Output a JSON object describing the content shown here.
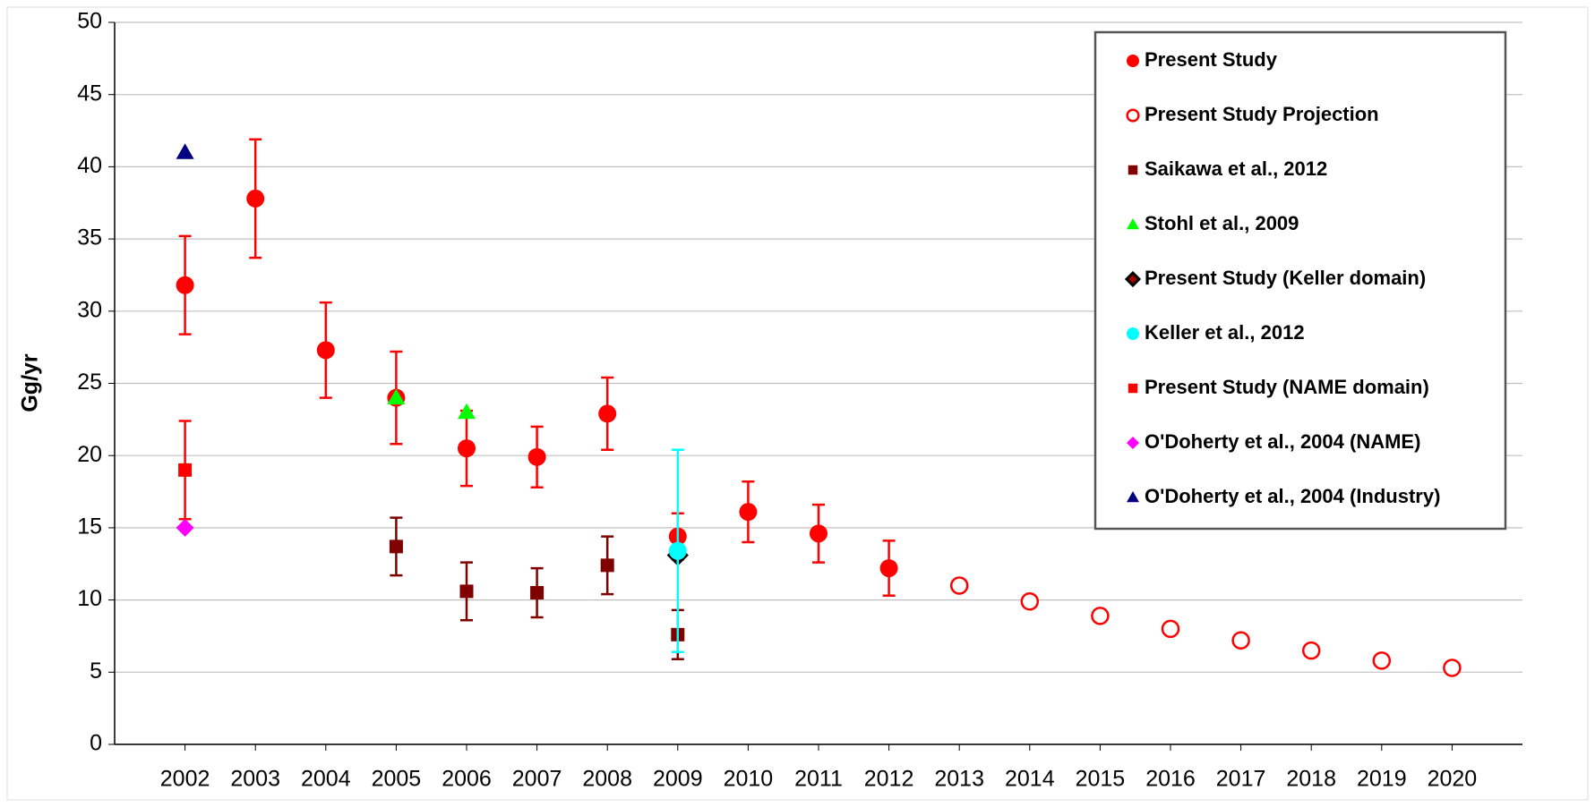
{
  "chart_data": {
    "type": "scatter",
    "y_label": "Gg/yr",
    "xlim": [
      2001,
      2021
    ],
    "xticks": [
      2002,
      2003,
      2004,
      2005,
      2006,
      2007,
      2008,
      2009,
      2010,
      2011,
      2012,
      2013,
      2014,
      2015,
      2016,
      2017,
      2018,
      2019,
      2020
    ],
    "ylim": [
      0,
      50
    ],
    "yticks": [
      0,
      5,
      10,
      15,
      20,
      25,
      30,
      35,
      40,
      45,
      50
    ],
    "grid": true,
    "legend": "upper right",
    "series": [
      {
        "name": "Present Study",
        "color": "#ff0000",
        "marker": "circle",
        "x": [
          2002,
          2003,
          2004,
          2005,
          2006,
          2007,
          2008,
          2009,
          2010,
          2011,
          2012
        ],
        "values": [
          31.8,
          37.8,
          27.3,
          24,
          20.5,
          19.9,
          22.9,
          14.4,
          16.1,
          14.6,
          12.2
        ],
        "errors": [
          3.4,
          4.1,
          3.3,
          3.2,
          2.6,
          2.1,
          2.5,
          1.6,
          2.1,
          2.0,
          1.9
        ]
      },
      {
        "name": "Present Study Projection",
        "color": "#ff0000",
        "marker": "open-circle",
        "x": [
          2013,
          2014,
          2015,
          2016,
          2017,
          2018,
          2019,
          2020
        ],
        "values": [
          11,
          9.9,
          8.9,
          8,
          7.2,
          6.5,
          5.8,
          5.3
        ]
      },
      {
        "name": "Saikawa et al., 2012",
        "color": "#800000",
        "marker": "square",
        "x": [
          2005,
          2006,
          2007,
          2008,
          2009
        ],
        "values": [
          13.7,
          10.6,
          10.5,
          12.4,
          7.6
        ],
        "errors": [
          2,
          2,
          1.7,
          2,
          1.7
        ]
      },
      {
        "name": "Stohl et al., 2009",
        "color": "#00ff00",
        "marker": "triangle",
        "x": [
          2005,
          2006
        ],
        "values": [
          24,
          23
        ]
      },
      {
        "name": "Present Study (Keller domain)",
        "color": "#990000",
        "marker": "diamond-outline",
        "x": [
          2009
        ],
        "values": [
          13.1
        ]
      },
      {
        "name": "Keller et al., 2012",
        "color": "#00ffff",
        "marker": "circle",
        "x": [
          2009
        ],
        "values": [
          13.4
        ],
        "errors": [
          7
        ]
      },
      {
        "name": "Present Study (NAME domain)",
        "color": "#ff0000",
        "marker": "square",
        "x": [
          2002
        ],
        "values": [
          19
        ],
        "errors": [
          3.4
        ]
      },
      {
        "name": "O'Doherty et al., 2004 (NAME)",
        "color": "#ff00ff",
        "marker": "diamond",
        "x": [
          2002
        ],
        "values": [
          15
        ]
      },
      {
        "name": "O'Doherty et al., 2004 (Industry)",
        "color": "#000080",
        "marker": "triangle",
        "x": [
          2002
        ],
        "values": [
          41
        ]
      }
    ]
  }
}
